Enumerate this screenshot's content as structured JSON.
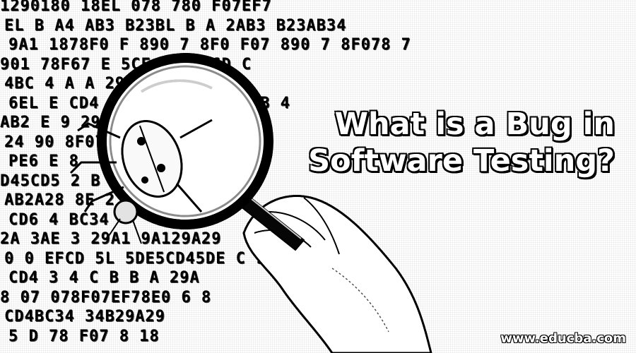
{
  "hero": {
    "headline_line1": "What is a Bug in",
    "headline_line2": "Software Testing?",
    "watermark": "www.educba.com"
  },
  "background_hex_rows": [
    "1290180 18EL  078 780   F07EF7",
    "EL B  A4 AB3 B23BL B A 2AB3 B23AB34",
    "9A1  1878F0  F 890 7 8F0 F07 890 7 8F078 7",
    "901 78F67 E         5CF  E F        56D    C",
    "  4BC 4 A             A 29A1 910 33 4",
    "  6EL E               CD4 CD4CD4 4CD4BCD4B 4",
    "AB2 E  9                    29A1  4A",
    "24  90                       8F078   E",
    "PE6 E 8",
    "D45CD5                      2 B  BC 2  7",
    "AB2A28                     8E     2  E    E",
    "CD6 4                  BC34",
    "  2A  3AE 3     29A1         9A129A29",
    "0  0    EFCD       5L      5DE5CD45DE  C  9",
    "  CD4 3 4 C    B       B        A    29A",
    "  8 07 078F07EF78E0 6 8",
    "CD4BC34           34B29A29",
    "5 D               78 F07 8 18"
  ],
  "icons": {
    "magnifier": "magnifying-glass-icon",
    "bug": "bug-icon",
    "hand": "hand-icon"
  },
  "colors": {
    "ink": "#111111",
    "paper": "#ffffff",
    "headline": "#ffffff"
  }
}
